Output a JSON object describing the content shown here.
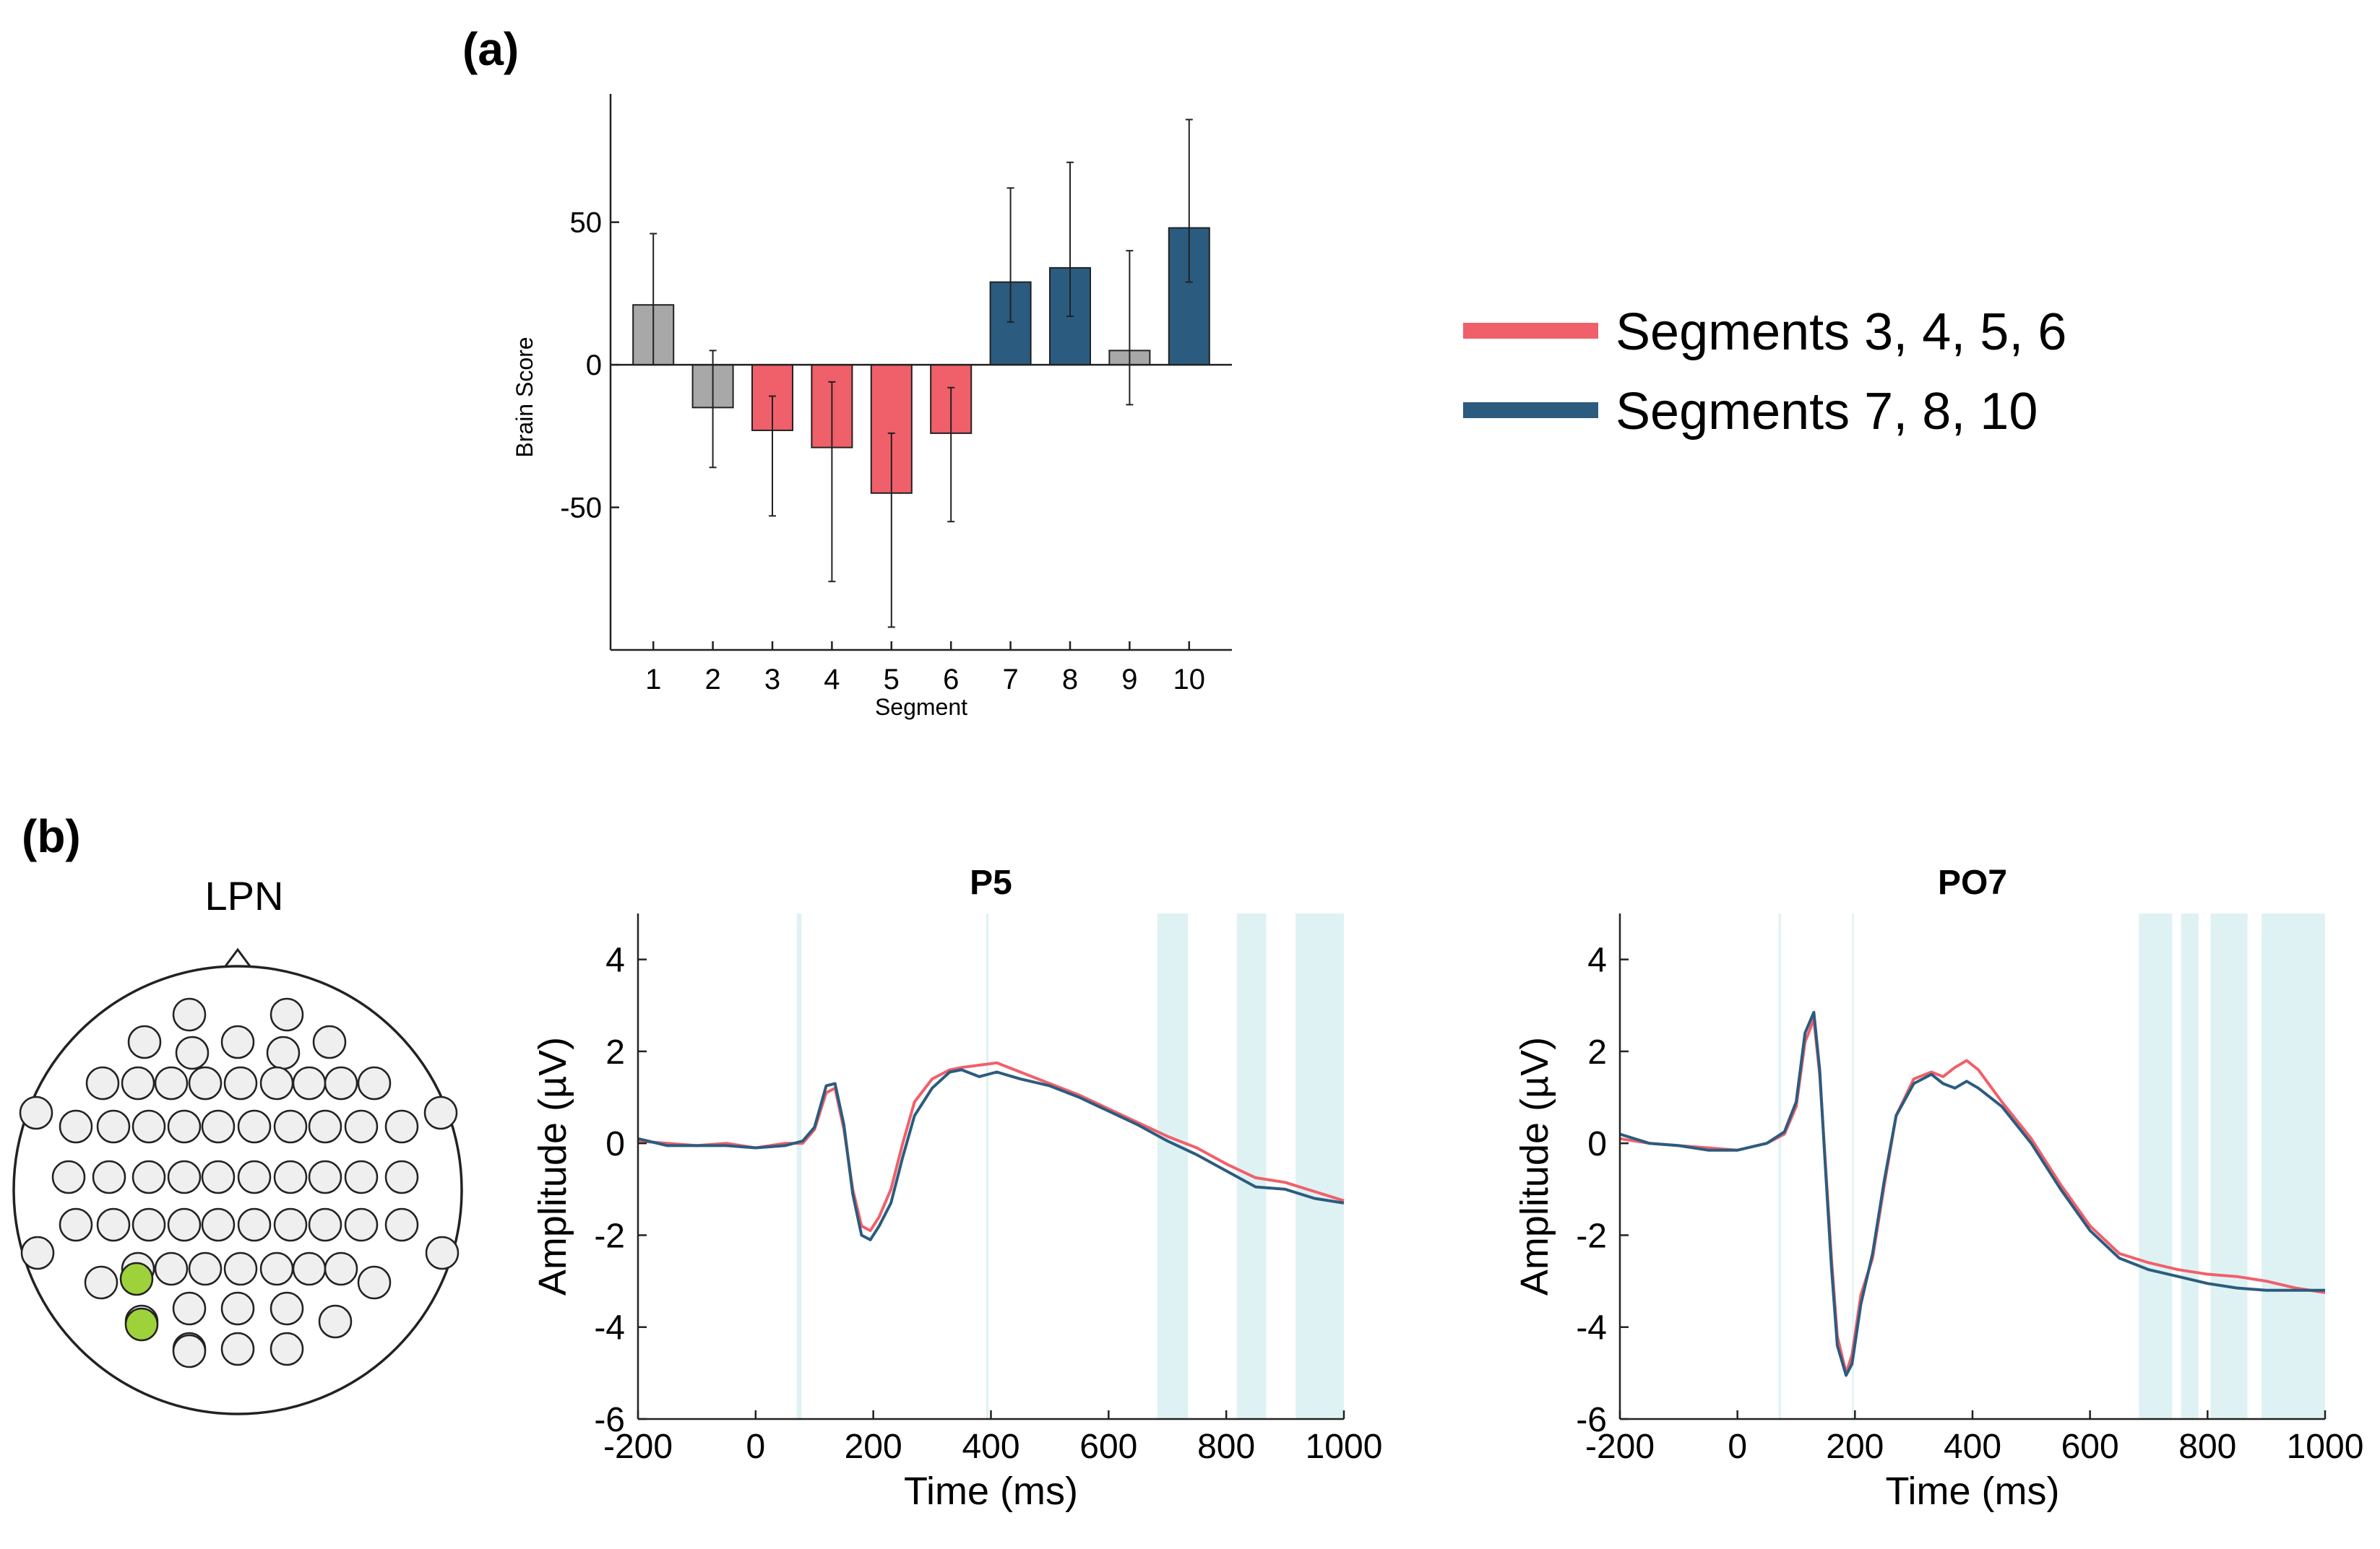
{
  "panel_labels": {
    "a": "(a)",
    "b": "(b)"
  },
  "colors": {
    "red": "#f0606a",
    "blue": "#2b5c7f",
    "gray": "#a8a8a8",
    "shade": "#dff2f3",
    "electrode": "#efefef",
    "electrode_active": "#9ed23a"
  },
  "legend": [
    {
      "label": "Segments 3, 4, 5, 6",
      "color": "#f0606a"
    },
    {
      "label": "Segments 7, 8, 10",
      "color": "#2b5c7f"
    }
  ],
  "topo": {
    "title": "LPN"
  },
  "chart_data": [
    {
      "type": "bar",
      "id": "brain-score",
      "xlabel": "Segment",
      "ylabel": "Brain Score",
      "categories": [
        "1",
        "2",
        "3",
        "4",
        "5",
        "6",
        "7",
        "8",
        "9",
        "10"
      ],
      "values": [
        21,
        -15,
        -23,
        -29,
        -45,
        -24,
        29,
        34,
        5,
        48
      ],
      "err_low": [
        0,
        -36,
        -53,
        -76,
        -92,
        -55,
        15,
        17,
        -14,
        29
      ],
      "err_high": [
        46,
        5,
        -11,
        -6,
        -24,
        -8,
        62,
        71,
        40,
        86
      ],
      "colors": [
        "gray",
        "gray",
        "red",
        "red",
        "red",
        "red",
        "blue",
        "blue",
        "gray",
        "blue"
      ],
      "ylim": [
        -100,
        95
      ],
      "yticks": [
        -50,
        0,
        50
      ],
      "ytick_labels": [
        "-50",
        "0",
        "50"
      ]
    },
    {
      "type": "line",
      "id": "p5",
      "title": "P5",
      "xlabel": "Time (ms)",
      "ylabel": "Amplitude (µV)",
      "xlim": [
        -200,
        1000
      ],
      "ylim": [
        -6,
        5
      ],
      "xticks": [
        -200,
        0,
        200,
        400,
        600,
        800,
        1000
      ],
      "xtick_labels": [
        "-200",
        "0",
        "200",
        "400",
        "600",
        "800",
        "1000"
      ],
      "yticks": [
        -6,
        -4,
        -2,
        0,
        2,
        4
      ],
      "ytick_labels": [
        "-6",
        "-4",
        "-2",
        "0",
        "2",
        "4"
      ],
      "shaded_intervals": [
        [
          70,
          78
        ],
        [
          392,
          396
        ],
        [
          683,
          735
        ],
        [
          818,
          868
        ],
        [
          918,
          1000
        ]
      ],
      "series": [
        {
          "name": "Segments 3, 4, 5, 6",
          "color": "red",
          "x": [
            -200,
            -150,
            -100,
            -50,
            0,
            50,
            80,
            100,
            120,
            135,
            150,
            165,
            180,
            195,
            210,
            230,
            250,
            270,
            300,
            330,
            350,
            380,
            410,
            450,
            500,
            550,
            600,
            650,
            700,
            750,
            800,
            850,
            900,
            950,
            1000
          ],
          "y": [
            0.05,
            0.0,
            -0.05,
            0.0,
            -0.1,
            0.0,
            0.0,
            0.3,
            1.1,
            1.2,
            0.3,
            -1.0,
            -1.8,
            -1.9,
            -1.6,
            -1.0,
            0.0,
            0.9,
            1.4,
            1.6,
            1.65,
            1.7,
            1.75,
            1.55,
            1.3,
            1.05,
            0.75,
            0.45,
            0.15,
            -0.1,
            -0.45,
            -0.75,
            -0.85,
            -1.05,
            -1.25
          ]
        },
        {
          "name": "Segments 7, 8, 10",
          "color": "blue",
          "x": [
            -200,
            -150,
            -100,
            -50,
            0,
            50,
            80,
            100,
            120,
            135,
            150,
            165,
            180,
            195,
            210,
            230,
            250,
            270,
            300,
            330,
            350,
            380,
            410,
            450,
            500,
            550,
            600,
            650,
            700,
            750,
            800,
            850,
            900,
            950,
            1000
          ],
          "y": [
            0.1,
            -0.05,
            -0.05,
            -0.05,
            -0.1,
            -0.05,
            0.05,
            0.35,
            1.25,
            1.3,
            0.4,
            -1.1,
            -2.0,
            -2.1,
            -1.8,
            -1.3,
            -0.3,
            0.6,
            1.2,
            1.55,
            1.6,
            1.45,
            1.55,
            1.4,
            1.25,
            1.0,
            0.7,
            0.4,
            0.05,
            -0.25,
            -0.6,
            -0.95,
            -1.0,
            -1.2,
            -1.3
          ]
        }
      ]
    },
    {
      "type": "line",
      "id": "po7",
      "title": "PO7",
      "xlabel": "Time (ms)",
      "ylabel": "Amplitude (µV)",
      "xlim": [
        -200,
        1000
      ],
      "ylim": [
        -6,
        5
      ],
      "xticks": [
        -200,
        0,
        200,
        400,
        600,
        800,
        1000
      ],
      "xtick_labels": [
        "-200",
        "0",
        "200",
        "400",
        "600",
        "800",
        "1000"
      ],
      "yticks": [
        -6,
        -4,
        -2,
        0,
        2,
        4
      ],
      "ytick_labels": [
        "-6",
        "-4",
        "-2",
        "0",
        "2",
        "4"
      ],
      "shaded_intervals": [
        [
          70,
          74
        ],
        [
          195,
          198
        ],
        [
          683,
          740
        ],
        [
          755,
          785
        ],
        [
          805,
          868
        ],
        [
          892,
          1000
        ]
      ],
      "series": [
        {
          "name": "Segments 3, 4, 5, 6",
          "color": "red",
          "x": [
            -200,
            -150,
            -100,
            -50,
            0,
            50,
            80,
            100,
            115,
            130,
            140,
            150,
            160,
            170,
            185,
            195,
            210,
            230,
            250,
            270,
            300,
            330,
            350,
            370,
            390,
            410,
            450,
            500,
            550,
            600,
            650,
            700,
            750,
            800,
            850,
            900,
            950,
            1000
          ],
          "y": [
            0.1,
            0.0,
            -0.05,
            -0.1,
            -0.15,
            0.0,
            0.2,
            0.8,
            2.2,
            2.7,
            1.5,
            -0.5,
            -2.5,
            -4.2,
            -5.0,
            -4.6,
            -3.3,
            -2.5,
            -0.9,
            0.6,
            1.4,
            1.55,
            1.45,
            1.65,
            1.8,
            1.6,
            0.9,
            0.1,
            -0.9,
            -1.8,
            -2.4,
            -2.6,
            -2.75,
            -2.85,
            -2.9,
            -3.0,
            -3.15,
            -3.25
          ]
        },
        {
          "name": "Segments 7, 8, 10",
          "color": "blue",
          "x": [
            -200,
            -150,
            -100,
            -50,
            0,
            50,
            80,
            100,
            115,
            130,
            140,
            150,
            160,
            170,
            185,
            195,
            210,
            230,
            250,
            270,
            300,
            330,
            350,
            370,
            390,
            410,
            450,
            500,
            550,
            600,
            650,
            700,
            750,
            800,
            850,
            900,
            950,
            1000
          ],
          "y": [
            0.2,
            0.0,
            -0.05,
            -0.15,
            -0.15,
            0.0,
            0.25,
            0.9,
            2.4,
            2.85,
            1.6,
            -0.6,
            -2.7,
            -4.4,
            -5.05,
            -4.8,
            -3.5,
            -2.4,
            -0.8,
            0.6,
            1.3,
            1.5,
            1.3,
            1.2,
            1.35,
            1.2,
            0.8,
            0.0,
            -1.0,
            -1.9,
            -2.5,
            -2.75,
            -2.9,
            -3.05,
            -3.15,
            -3.2,
            -3.2,
            -3.2
          ]
        }
      ]
    }
  ]
}
